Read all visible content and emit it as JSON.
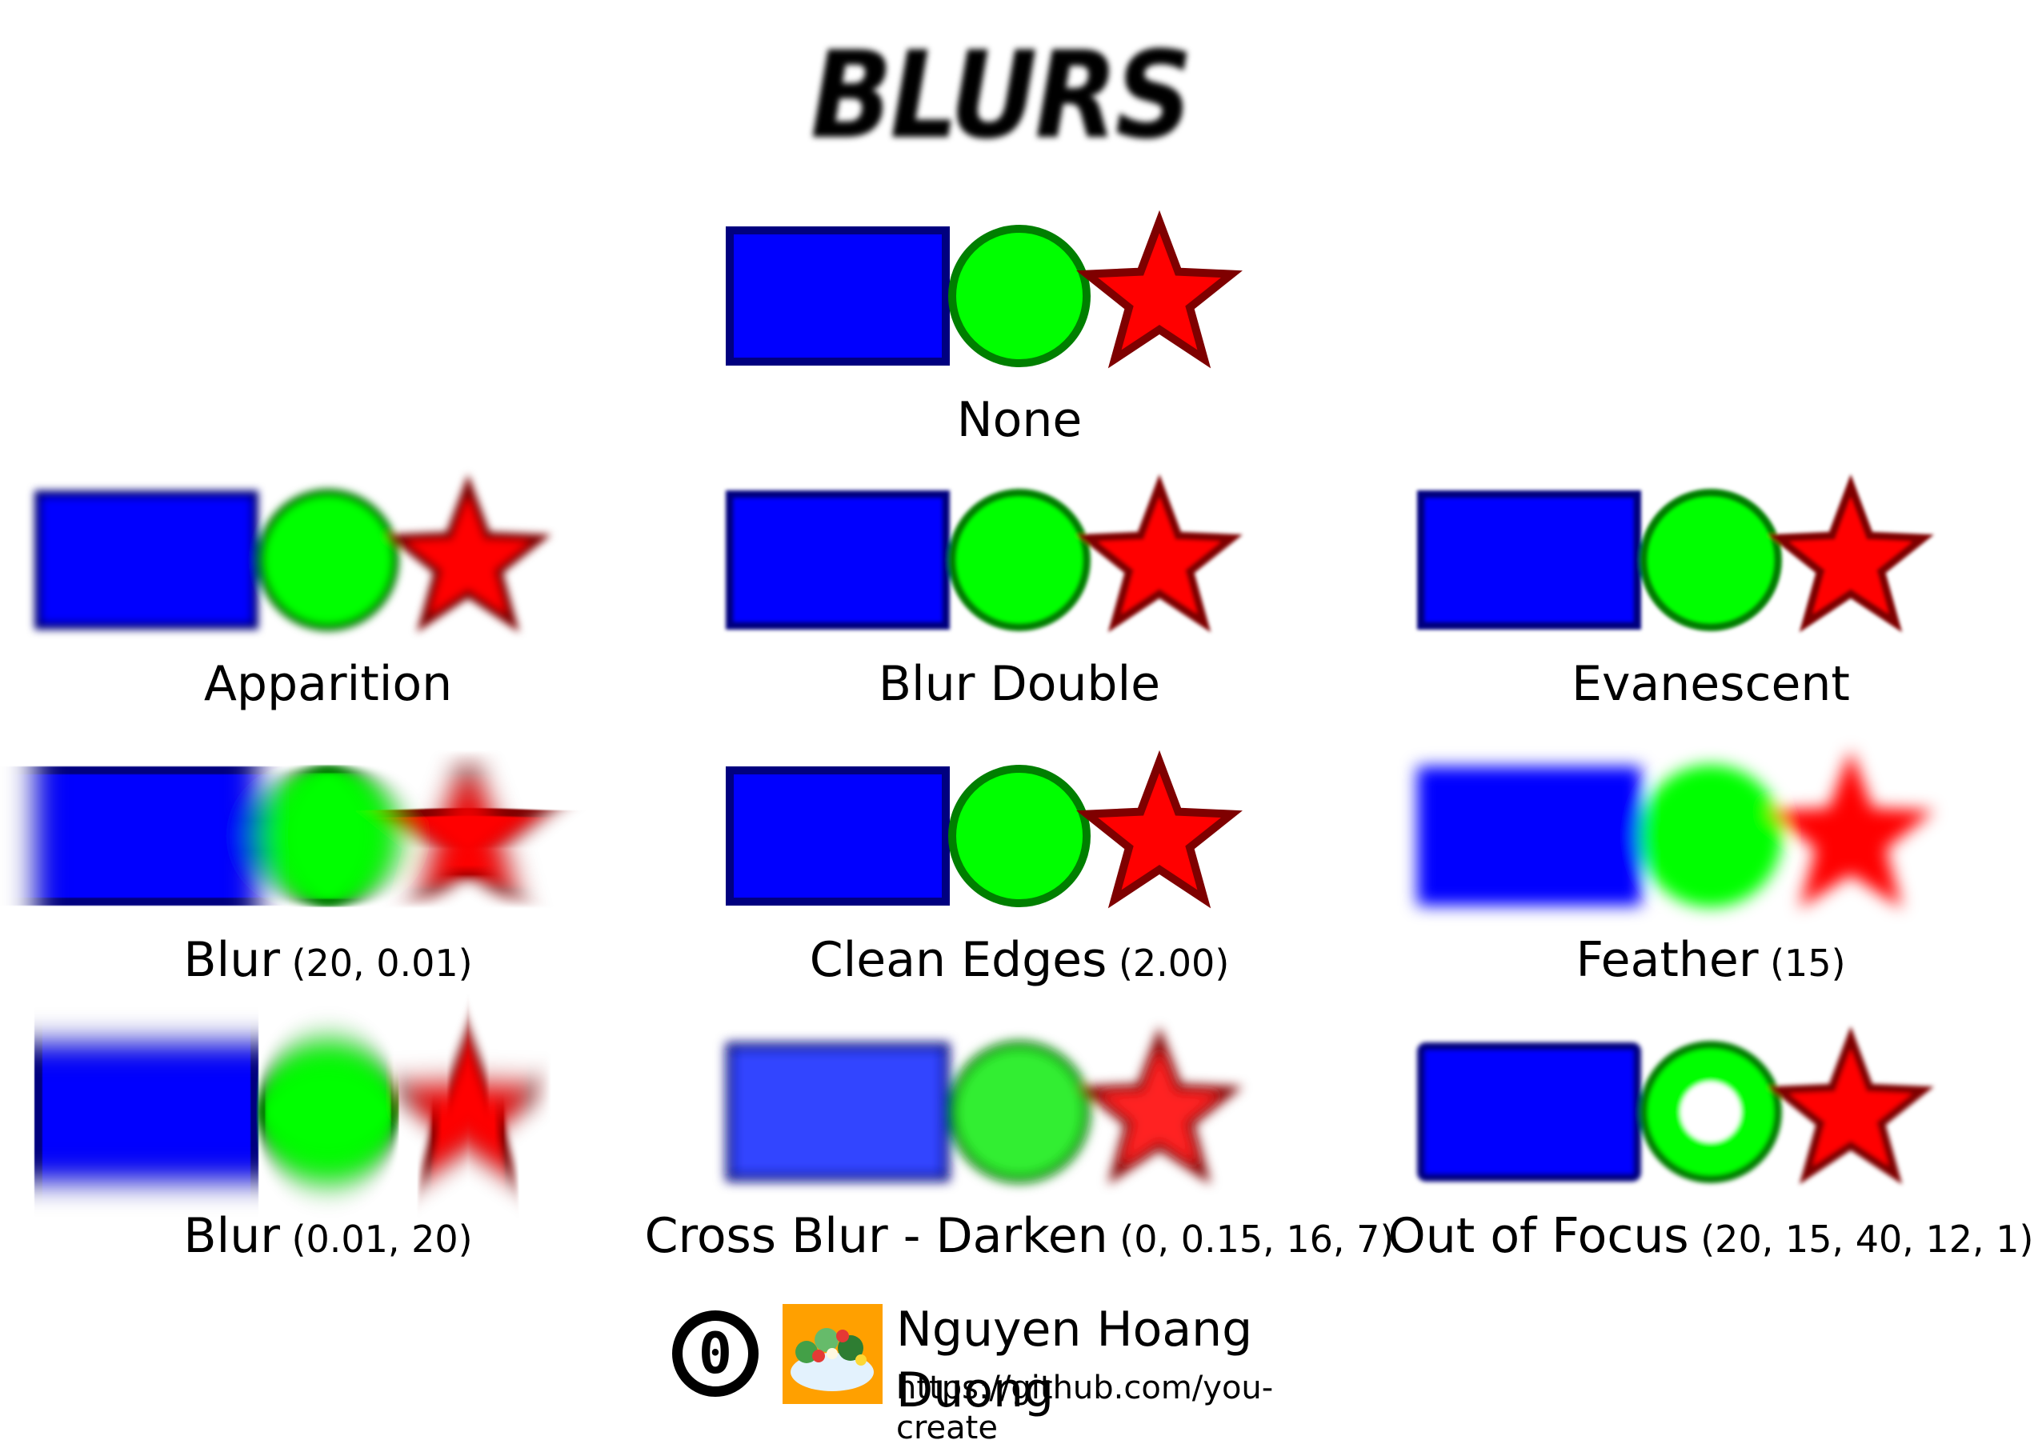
{
  "title": "BLURS",
  "colors": {
    "rect_fill": "#0000ff",
    "rect_stroke": "#00007f",
    "circle_fill": "#00ff00",
    "circle_stroke": "#007f00",
    "star_fill": "#ff0000",
    "star_stroke": "#7f0000"
  },
  "panels": [
    {
      "name": "None",
      "params": ""
    },
    {
      "name": "Apparition",
      "params": ""
    },
    {
      "name": "Blur Double",
      "params": ""
    },
    {
      "name": "Evanescent",
      "params": ""
    },
    {
      "name": "Blur",
      "params": "(20, 0.01)"
    },
    {
      "name": "Clean Edges",
      "params": "(2.00)"
    },
    {
      "name": "Feather",
      "params": "(15)"
    },
    {
      "name": "Blur",
      "params": "(0.01, 20)"
    },
    {
      "name": "Cross Blur - Darken",
      "params": "(0, 0.15, 16, 7)"
    },
    {
      "name": "Out of Focus",
      "params": "(20, 15, 40, 12, 1)"
    }
  ],
  "footer": {
    "author": "Nguyen Hoang Duong",
    "link": "https://github.com/you-create",
    "license_icon": "cc0-icon",
    "avatar_icon": "salad-bowl-icon"
  }
}
